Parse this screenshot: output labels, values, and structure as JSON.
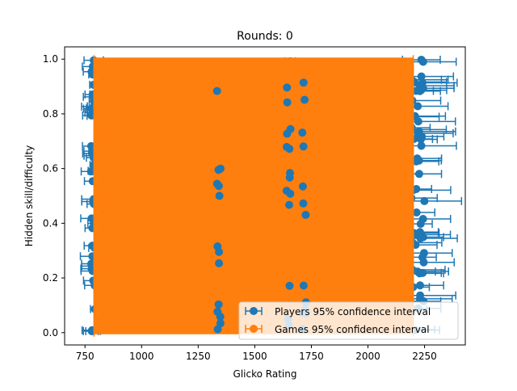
{
  "chart_data": {
    "type": "scatter",
    "title": "Rounds: 0",
    "xlabel": "Glicko Rating",
    "ylabel": "Hidden skill/difficulty",
    "xlim": [
      660,
      2430
    ],
    "ylim": [
      -0.045,
      1.045
    ],
    "x_ticks": [
      750,
      1000,
      1250,
      1500,
      1750,
      2000,
      2250
    ],
    "y_ticks": [
      0.0,
      0.2,
      0.4,
      0.6,
      0.8,
      1.0
    ],
    "x_tick_labels": [
      "750",
      "1000",
      "1250",
      "1500",
      "1750",
      "2000",
      "2250"
    ],
    "y_tick_labels": [
      "0.0",
      "0.2",
      "0.4",
      "0.6",
      "0.8",
      "1.0"
    ],
    "grid": false,
    "legend_position": "lower-right",
    "series": [
      {
        "name": "Players 95% confidence interval",
        "color": "#1f77b4",
        "marker": "circle",
        "errorbar": "horizontal",
        "point_groups": [
          {
            "x": 785,
            "y_range": [
              0.0,
              1.0
            ],
            "xerr": 40
          },
          {
            "x": 1340,
            "y_range": [
              0.0,
              0.97
            ],
            "xerr": 20
          },
          {
            "x": 1650,
            "y_range": [
              0.1,
              1.0
            ],
            "xerr": 20
          },
          {
            "x": 1720,
            "y_range": [
              0.3,
              1.0
            ],
            "xerr": 30
          },
          {
            "x": 2220,
            "y_range": [
              0.0,
              1.0
            ],
            "xerr": 120
          }
        ]
      },
      {
        "name": "Games 95% confidence interval",
        "color": "#ff7f0e",
        "marker": "circle",
        "errorbar": "horizontal",
        "x_range": [
          790,
          2200
        ],
        "y_range": [
          0.0,
          1.0
        ]
      }
    ]
  }
}
